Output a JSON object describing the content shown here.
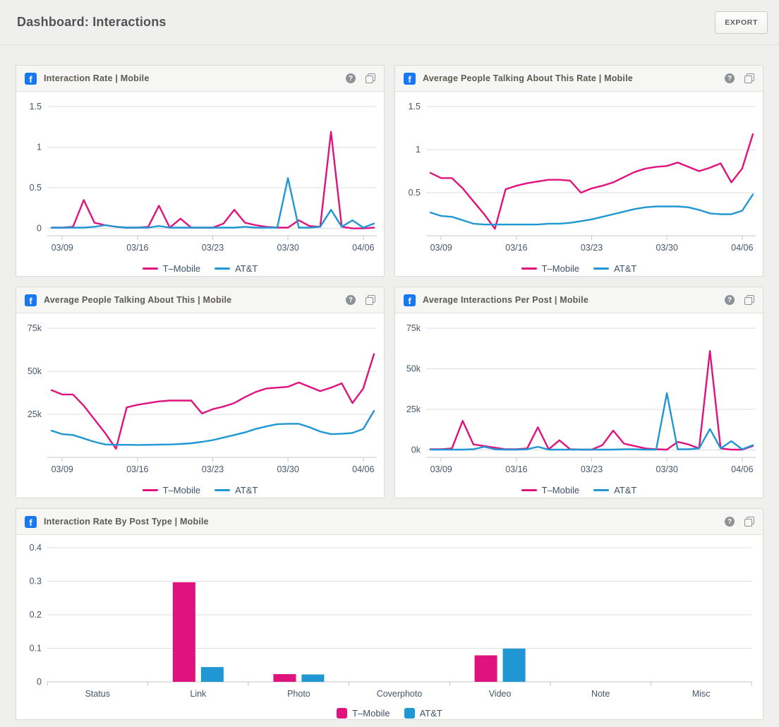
{
  "header": {
    "title": "Dashboard: Interactions",
    "export_label": "EXPORT"
  },
  "icons": {
    "facebook": "f",
    "help": "?"
  },
  "colors": {
    "tmobile": "#e0127d",
    "att": "#2096d3",
    "grid": "#dcdedf",
    "axis": "#c5c8ca"
  },
  "chart_data": [
    {
      "type": "line",
      "title": "Interaction Rate | Mobile",
      "ylim": [
        -0.09,
        1.5
      ],
      "yticks": [
        {
          "v": 0,
          "label": "0"
        },
        {
          "v": 0.5,
          "label": "0.5"
        },
        {
          "v": 1,
          "label": "1"
        },
        {
          "v": 1.5,
          "label": "1.5"
        }
      ],
      "x": [
        "03/08",
        "03/09",
        "03/10",
        "03/11",
        "03/12",
        "03/13",
        "03/14",
        "03/15",
        "03/16",
        "03/17",
        "03/18",
        "03/19",
        "03/20",
        "03/21",
        "03/22",
        "03/23",
        "03/24",
        "03/25",
        "03/26",
        "03/27",
        "03/28",
        "03/29",
        "03/30",
        "03/31",
        "04/01",
        "04/02",
        "04/03",
        "04/04",
        "04/05",
        "04/06",
        "04/07"
      ],
      "xticks": [
        "03/09",
        "03/16",
        "03/23",
        "03/30",
        "04/06"
      ],
      "series": [
        {
          "name": "T–Mobile",
          "color": "#e0127d",
          "values": [
            0.01,
            0.01,
            0.02,
            0.35,
            0.07,
            0.04,
            0.02,
            0.01,
            0.01,
            0.02,
            0.28,
            0.01,
            0.12,
            0.01,
            0.01,
            0.01,
            0.06,
            0.23,
            0.07,
            0.04,
            0.02,
            0.01,
            0.01,
            0.1,
            0.03,
            0.02,
            1.19,
            0.02,
            0.0,
            0.0,
            0.01
          ]
        },
        {
          "name": "AT&T",
          "color": "#2096d3",
          "values": [
            0.01,
            0.01,
            0.01,
            0.01,
            0.02,
            0.04,
            0.02,
            0.01,
            0.01,
            0.01,
            0.03,
            0.01,
            0.01,
            0.01,
            0.01,
            0.01,
            0.01,
            0.01,
            0.02,
            0.01,
            0.01,
            0.01,
            0.62,
            0.01,
            0.01,
            0.02,
            0.23,
            0.02,
            0.1,
            0.01,
            0.06
          ]
        }
      ]
    },
    {
      "type": "line",
      "title": "Average People Talking About This Rate | Mobile",
      "ylim": [
        0,
        1.5
      ],
      "yticks": [
        {
          "v": 0.5,
          "label": "0.5"
        },
        {
          "v": 1,
          "label": "1"
        },
        {
          "v": 1.5,
          "label": "1.5"
        }
      ],
      "x": [
        "03/08",
        "03/09",
        "03/10",
        "03/11",
        "03/12",
        "03/13",
        "03/14",
        "03/15",
        "03/16",
        "03/17",
        "03/18",
        "03/19",
        "03/20",
        "03/21",
        "03/22",
        "03/23",
        "03/24",
        "03/25",
        "03/26",
        "03/27",
        "03/28",
        "03/29",
        "03/30",
        "03/31",
        "04/01",
        "04/02",
        "04/03",
        "04/04",
        "04/05",
        "04/06",
        "04/07"
      ],
      "xticks": [
        "03/09",
        "03/16",
        "03/23",
        "03/30",
        "04/06"
      ],
      "series": [
        {
          "name": "T–Mobile",
          "color": "#e0127d",
          "values": [
            0.73,
            0.67,
            0.67,
            0.55,
            0.4,
            0.25,
            0.08,
            0.54,
            0.58,
            0.61,
            0.63,
            0.65,
            0.65,
            0.64,
            0.5,
            0.55,
            0.58,
            0.62,
            0.68,
            0.74,
            0.78,
            0.8,
            0.81,
            0.85,
            0.8,
            0.75,
            0.79,
            0.84,
            0.62,
            0.78,
            1.18
          ]
        },
        {
          "name": "AT&T",
          "color": "#2096d3",
          "values": [
            0.27,
            0.23,
            0.22,
            0.18,
            0.14,
            0.13,
            0.13,
            0.13,
            0.13,
            0.13,
            0.13,
            0.14,
            0.14,
            0.15,
            0.17,
            0.19,
            0.22,
            0.25,
            0.28,
            0.31,
            0.33,
            0.34,
            0.34,
            0.34,
            0.33,
            0.3,
            0.26,
            0.25,
            0.25,
            0.29,
            0.48
          ]
        }
      ]
    },
    {
      "type": "line",
      "title": "Average People Talking About This | Mobile",
      "ylim": [
        0,
        75000
      ],
      "yticks": [
        {
          "v": 25000,
          "label": "25k"
        },
        {
          "v": 50000,
          "label": "50k"
        },
        {
          "v": 75000,
          "label": "75k"
        }
      ],
      "x": [
        "03/08",
        "03/09",
        "03/10",
        "03/11",
        "03/12",
        "03/13",
        "03/14",
        "03/15",
        "03/16",
        "03/17",
        "03/18",
        "03/19",
        "03/20",
        "03/21",
        "03/22",
        "03/23",
        "03/24",
        "03/25",
        "03/26",
        "03/27",
        "03/28",
        "03/29",
        "03/30",
        "03/31",
        "04/01",
        "04/02",
        "04/03",
        "04/04",
        "04/05",
        "04/06",
        "04/07"
      ],
      "xticks": [
        "03/09",
        "03/16",
        "03/23",
        "03/30",
        "04/06"
      ],
      "series": [
        {
          "name": "T–Mobile",
          "color": "#e0127d",
          "values": [
            39000,
            36500,
            36500,
            30000,
            22000,
            14000,
            5000,
            29000,
            30500,
            31500,
            32500,
            33000,
            33000,
            33000,
            25500,
            28000,
            29500,
            31500,
            35000,
            38000,
            40000,
            40500,
            41000,
            43500,
            41000,
            38500,
            40500,
            43000,
            31500,
            40000,
            60000
          ]
        },
        {
          "name": "AT&T",
          "color": "#2096d3",
          "values": [
            15500,
            13500,
            13000,
            11000,
            9000,
            7500,
            7300,
            7300,
            7200,
            7300,
            7400,
            7500,
            7800,
            8200,
            9000,
            10000,
            11500,
            13000,
            14500,
            16500,
            18000,
            19300,
            19500,
            19500,
            17500,
            15000,
            13500,
            13700,
            14200,
            16500,
            27000
          ]
        }
      ]
    },
    {
      "type": "line",
      "title": "Average Interactions Per Post | Mobile",
      "ylim": [
        -4500,
        75000
      ],
      "yticks": [
        {
          "v": 0,
          "label": "0k"
        },
        {
          "v": 25000,
          "label": "25k"
        },
        {
          "v": 50000,
          "label": "50k"
        },
        {
          "v": 75000,
          "label": "75k"
        }
      ],
      "x": [
        "03/08",
        "03/09",
        "03/10",
        "03/11",
        "03/12",
        "03/13",
        "03/14",
        "03/15",
        "03/16",
        "03/17",
        "03/18",
        "03/19",
        "03/20",
        "03/21",
        "03/22",
        "03/23",
        "03/24",
        "03/25",
        "03/26",
        "03/27",
        "03/28",
        "03/29",
        "03/30",
        "03/31",
        "04/01",
        "04/02",
        "04/03",
        "04/04",
        "04/05",
        "04/06",
        "04/07"
      ],
      "xticks": [
        "03/09",
        "03/16",
        "03/23",
        "03/30",
        "04/06"
      ],
      "series": [
        {
          "name": "T–Mobile",
          "color": "#e0127d",
          "values": [
            500,
            500,
            1000,
            18000,
            3500,
            2500,
            1500,
            500,
            500,
            1000,
            14000,
            500,
            6000,
            500,
            300,
            300,
            3000,
            12000,
            4000,
            2500,
            1000,
            500,
            300,
            5000,
            3500,
            1000,
            61000,
            1000,
            300,
            300,
            2500
          ]
        },
        {
          "name": "AT&T",
          "color": "#2096d3",
          "values": [
            300,
            300,
            300,
            300,
            500,
            2000,
            500,
            300,
            300,
            500,
            2000,
            300,
            300,
            300,
            300,
            300,
            300,
            300,
            500,
            500,
            300,
            300,
            35000,
            500,
            500,
            1000,
            13000,
            1000,
            5500,
            500,
            3000
          ]
        }
      ]
    },
    {
      "type": "bar",
      "title": "Interaction Rate By Post Type | Mobile",
      "ylim": [
        0,
        0.4
      ],
      "yticks": [
        {
          "v": 0,
          "label": "0"
        },
        {
          "v": 0.1,
          "label": "0.1"
        },
        {
          "v": 0.2,
          "label": "0.2"
        },
        {
          "v": 0.3,
          "label": "0.3"
        },
        {
          "v": 0.4,
          "label": "0.4"
        }
      ],
      "categories": [
        "Status",
        "Link",
        "Photo",
        "Coverphoto",
        "Video",
        "Note",
        "Misc"
      ],
      "series": [
        {
          "name": "T–Mobile",
          "color": "#e0127d",
          "values": [
            0,
            0.297,
            0.023,
            0,
            0.079,
            0,
            0
          ]
        },
        {
          "name": "AT&T",
          "color": "#2096d3",
          "values": [
            0,
            0.044,
            0.022,
            0,
            0.099,
            0,
            0
          ]
        }
      ]
    }
  ]
}
